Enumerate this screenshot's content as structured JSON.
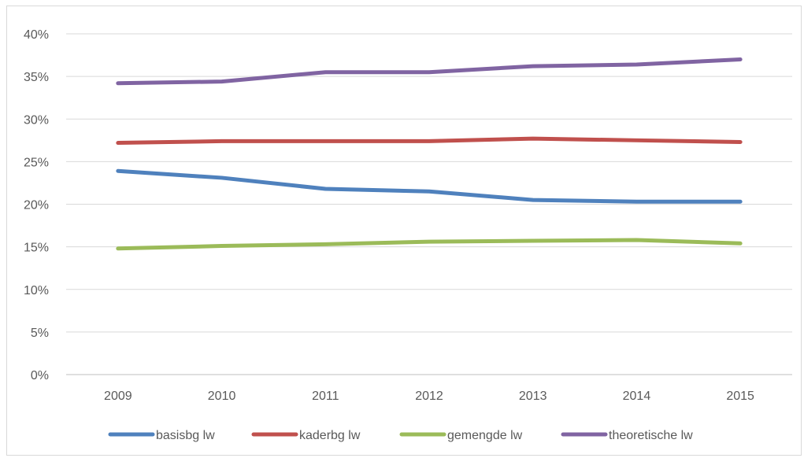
{
  "chart_data": {
    "type": "line",
    "categories": [
      "2009",
      "2010",
      "2011",
      "2012",
      "2013",
      "2014",
      "2015"
    ],
    "ylim": [
      0,
      40
    ],
    "y_ticks": [
      0,
      5,
      10,
      15,
      20,
      25,
      30,
      35,
      40
    ],
    "y_tick_labels": [
      "0%",
      "5%",
      "10%",
      "15%",
      "20%",
      "25%",
      "30%",
      "35%",
      "40%"
    ],
    "grid": true,
    "legend_position": "bottom",
    "series": [
      {
        "name": "basisbg lw",
        "color": "#4f81bd",
        "values": [
          23.9,
          23.1,
          21.8,
          21.5,
          20.5,
          20.3,
          20.3
        ]
      },
      {
        "name": "kaderbg lw",
        "color": "#c0504d",
        "values": [
          27.2,
          27.4,
          27.4,
          27.4,
          27.7,
          27.5,
          27.3
        ]
      },
      {
        "name": "gemengde lw",
        "color": "#9bbb59",
        "values": [
          14.8,
          15.1,
          15.3,
          15.6,
          15.7,
          15.8,
          15.4
        ]
      },
      {
        "name": "theoretische lw",
        "color": "#8064a2",
        "values": [
          34.2,
          34.4,
          35.5,
          35.5,
          36.2,
          36.4,
          37.0
        ]
      }
    ]
  }
}
